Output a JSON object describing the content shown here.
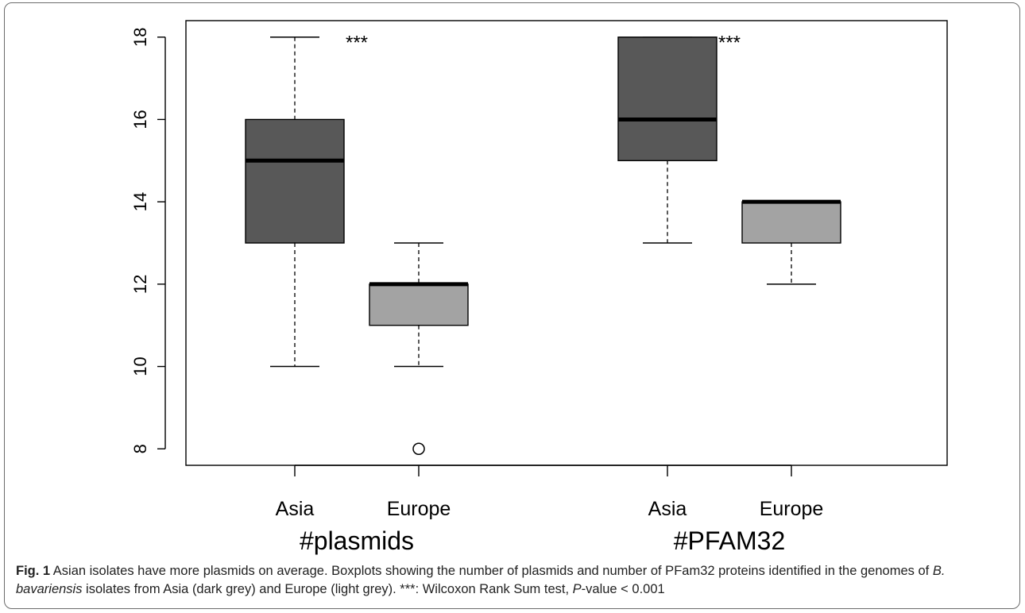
{
  "chart_data": {
    "type": "boxplot",
    "title": "",
    "ylim": [
      7.6,
      18.4
    ],
    "yticks": [
      8,
      10,
      12,
      14,
      16,
      18
    ],
    "grid": false,
    "groups": [
      {
        "label": "#plasmids",
        "boxes": [
          {
            "category": "Asia",
            "min": 10,
            "q1": 13,
            "median": 15,
            "q3": 16,
            "max": 18,
            "outliers": [],
            "color": "#585858"
          },
          {
            "category": "Europe",
            "min": 10,
            "q1": 11,
            "median": 12,
            "q3": 12,
            "max": 13,
            "outliers": [
              8
            ],
            "color": "#a3a3a3"
          }
        ],
        "annotation": "***"
      },
      {
        "label": "#PFAM32",
        "boxes": [
          {
            "category": "Asia",
            "min": 13,
            "q1": 15,
            "median": 16,
            "q3": 18,
            "max": 18,
            "outliers": [],
            "color": "#585858"
          },
          {
            "category": "Europe",
            "min": 12,
            "q1": 13,
            "median": 14,
            "q3": 14,
            "max": 14,
            "outliers": [],
            "color": "#a3a3a3"
          }
        ],
        "annotation": "***"
      }
    ]
  },
  "caption": {
    "fig_label": "Fig. 1",
    "text_1": " Asian isolates have more plasmids on average. Boxplots showing the number of plasmids and number of PFam32 proteins identified in the genomes of ",
    "species": "B. bavariensis",
    "text_2": " isolates from Asia (dark grey) and Europe (light grey). ***: Wilcoxon Rank Sum test, ",
    "p_italic": "P",
    "text_3": "-value < 0.001"
  }
}
